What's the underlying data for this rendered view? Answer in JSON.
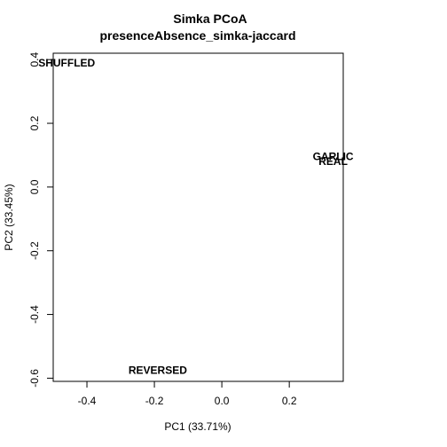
{
  "chart_data": {
    "type": "scatter",
    "title": "Simka PCoA",
    "subtitle": "presenceAbsence_simka-jaccard",
    "xlabel": "PC1 (33.71%)",
    "ylabel": "PC2 (33.45%)",
    "xlim": [
      -0.5,
      0.36
    ],
    "ylim": [
      -0.61,
      0.42
    ],
    "xticks": [
      -0.4,
      -0.2,
      0.0,
      0.2
    ],
    "xtick_labels": [
      "-0.4",
      "-0.2",
      "0.0",
      "0.2"
    ],
    "yticks": [
      -0.6,
      -0.4,
      -0.2,
      0.0,
      0.2,
      0.4
    ],
    "ytick_labels": [
      "-0.6",
      "-0.4",
      "-0.2",
      "0.0",
      "0.2",
      "0.4"
    ],
    "grid": false,
    "legend": "none",
    "points": [
      {
        "label": "SHUFFLED",
        "x": -0.46,
        "y": 0.39
      },
      {
        "label": "GARLIC",
        "x": 0.33,
        "y": 0.095
      },
      {
        "label": "REAL",
        "x": 0.33,
        "y": 0.08
      },
      {
        "label": "REVERSED",
        "x": -0.19,
        "y": -0.575
      }
    ]
  }
}
